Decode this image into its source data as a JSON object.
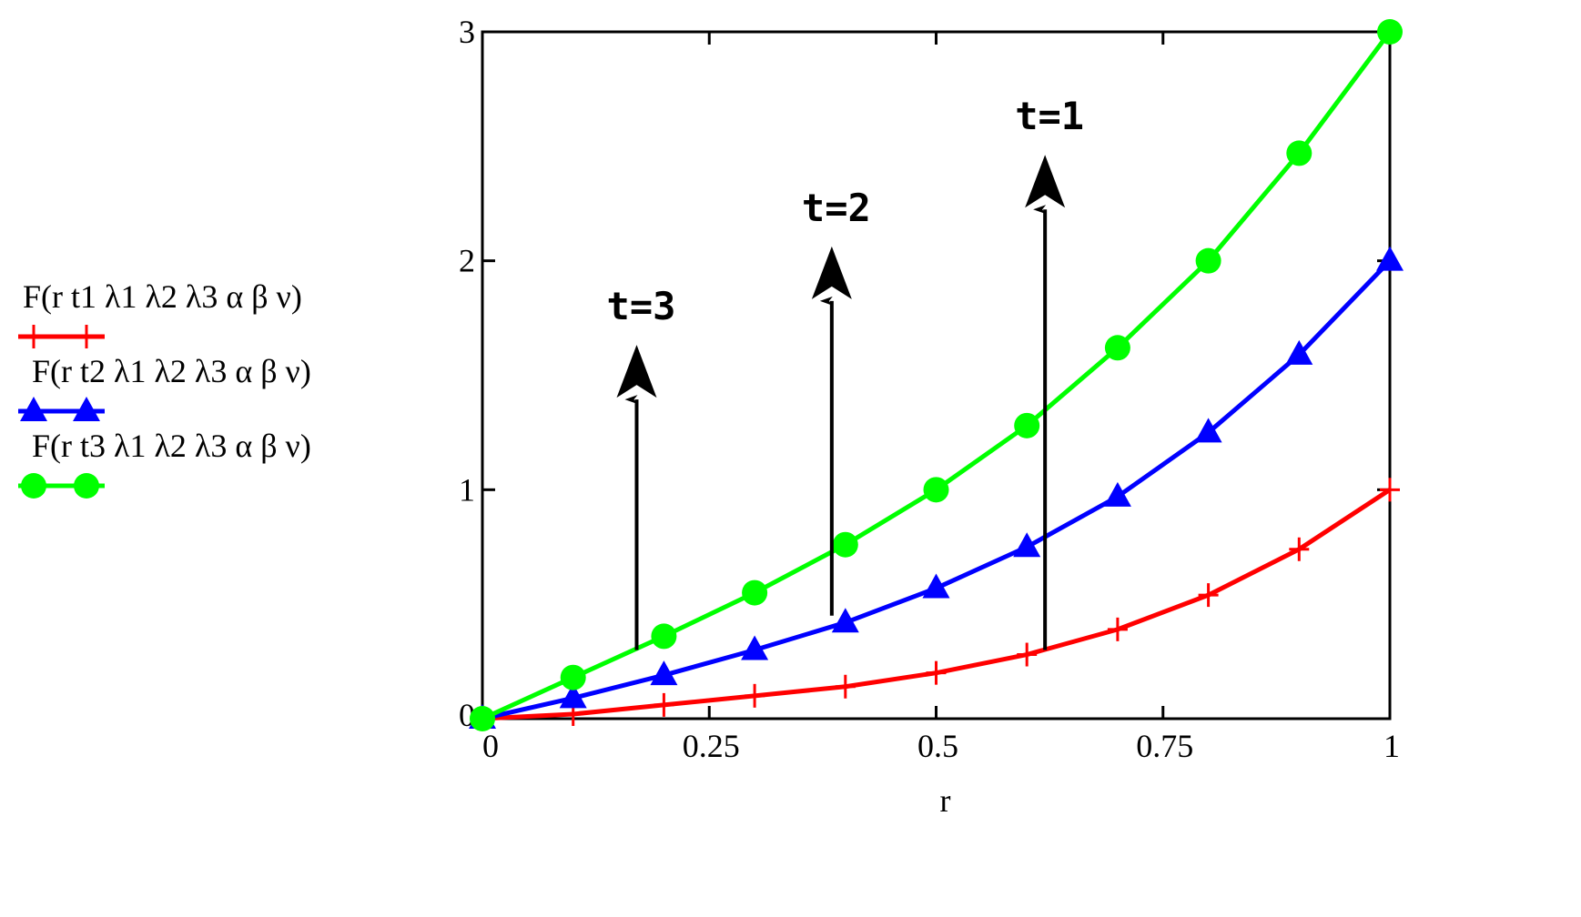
{
  "chart_data": {
    "type": "line",
    "xlabel": "r",
    "ylabel": "",
    "xlim": [
      0,
      1
    ],
    "ylim": [
      0,
      3
    ],
    "xticks": [
      0,
      0.25,
      0.5,
      0.75,
      1
    ],
    "yticks": [
      0,
      1,
      2,
      3
    ],
    "xtick_labels": [
      "0",
      "0.25",
      "0.5",
      "0.75",
      "1"
    ],
    "ytick_labels": [
      "0",
      "1",
      "2",
      "3"
    ],
    "grid": false,
    "legend_position": "left",
    "x": [
      0,
      0.1,
      0.2,
      0.3,
      0.4,
      0.5,
      0.6,
      0.7,
      0.8,
      0.9,
      1
    ],
    "series": [
      {
        "name": "F(r t1 λ1 λ2 λ3 α β ν)",
        "color": "#ff0000",
        "marker": "plus",
        "values": [
          0,
          0.02,
          0.06,
          0.1,
          0.14,
          0.2,
          0.28,
          0.39,
          0.54,
          0.74,
          1.0
        ]
      },
      {
        "name": "F(r t2 λ1 λ2 λ3 α β ν)",
        "color": "#0000ff",
        "marker": "triangle",
        "values": [
          0,
          0.09,
          0.19,
          0.3,
          0.42,
          0.57,
          0.75,
          0.97,
          1.25,
          1.59,
          2.0
        ]
      },
      {
        "name": "F(r t3 λ1 λ2 λ3 α β ν)",
        "color": "#00ff00",
        "marker": "circle",
        "values": [
          0,
          0.18,
          0.36,
          0.55,
          0.76,
          1.0,
          1.28,
          1.62,
          2.0,
          2.47,
          3.0
        ]
      }
    ],
    "annotations": [
      {
        "text": "t=3",
        "arrow_x": 0.17,
        "arrow_from": 0.3,
        "arrow_to": 1.45
      },
      {
        "text": "t=2",
        "arrow_x": 0.385,
        "arrow_from": 0.45,
        "arrow_to": 1.88
      },
      {
        "text": "t=1",
        "arrow_x": 0.62,
        "arrow_from": 0.3,
        "arrow_to": 2.28
      }
    ]
  }
}
